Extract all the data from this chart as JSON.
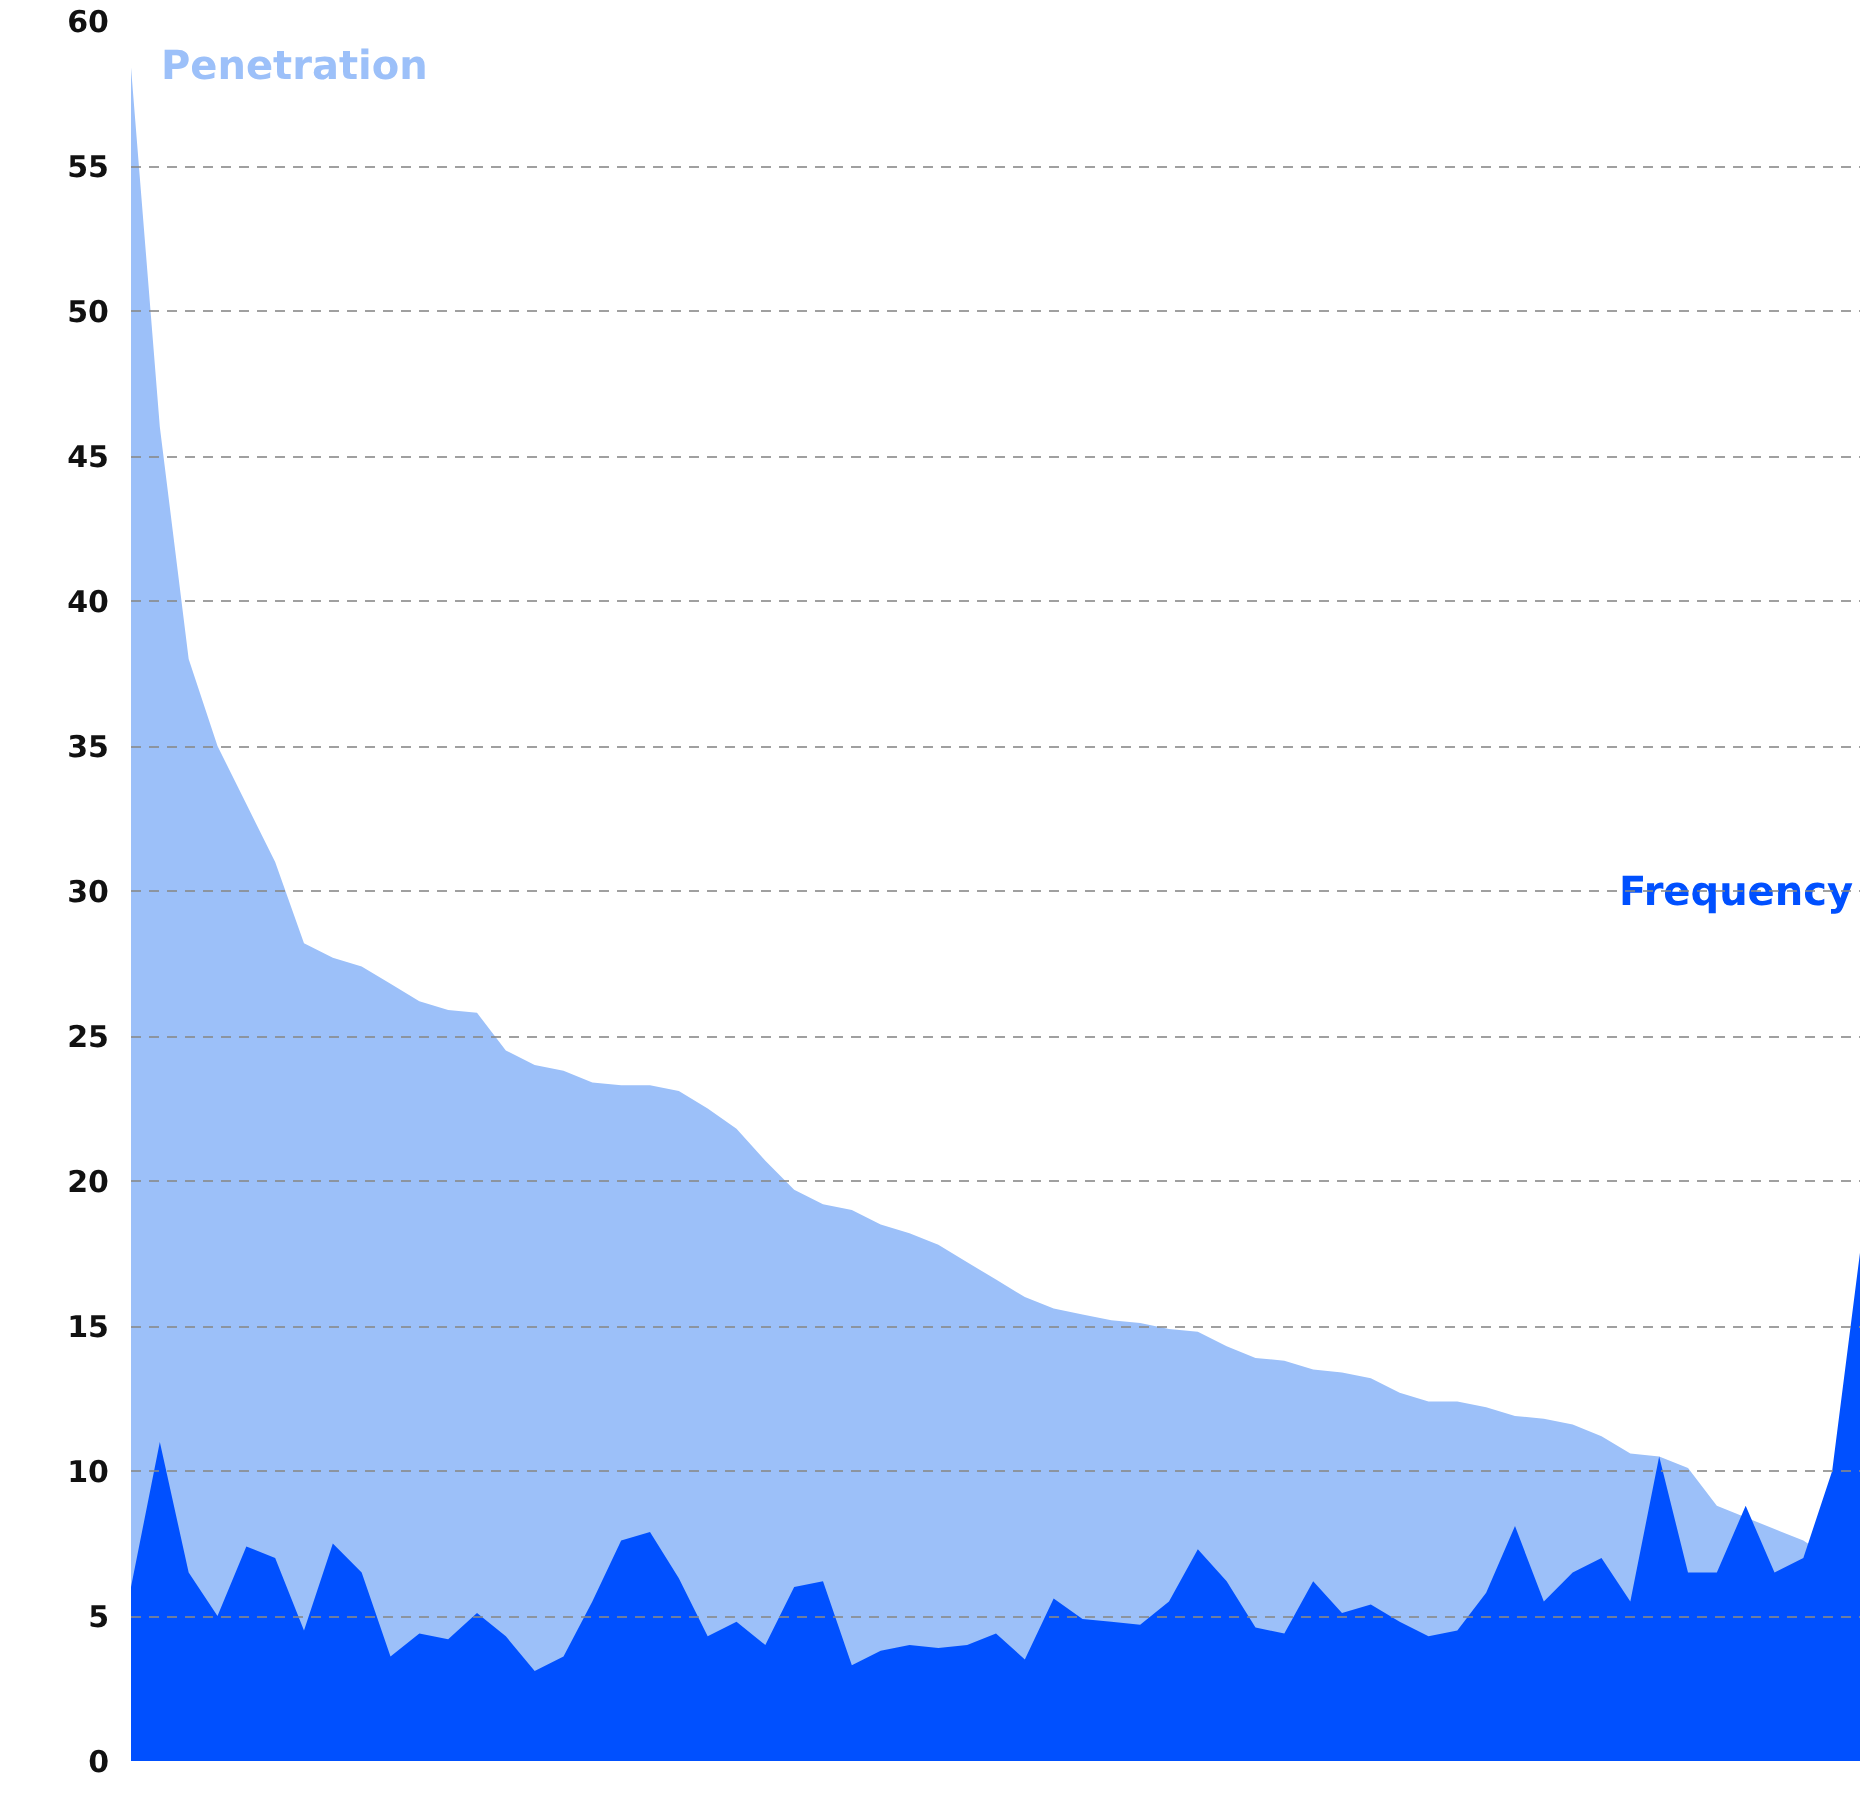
{
  "chart_data": {
    "type": "area",
    "categories": [
      null,
      null,
      null,
      null,
      null,
      null,
      null,
      null,
      null,
      null,
      null,
      null,
      null,
      null,
      null,
      null,
      null,
      null,
      null,
      null,
      null,
      null,
      null,
      null,
      null,
      null,
      null,
      null,
      null,
      null,
      null,
      null,
      null,
      null,
      null,
      null,
      null,
      null,
      null,
      null,
      null,
      null,
      null,
      null,
      null,
      null,
      null,
      null,
      null,
      null,
      null,
      null,
      null,
      null,
      null,
      null,
      null,
      null,
      null,
      null,
      null
    ],
    "series": [
      {
        "name": "Penetration",
        "color": "#9cc0f9",
        "values": [
          58.4,
          46,
          38,
          35,
          33,
          31,
          28.2,
          27.7,
          27.4,
          26.8,
          26.2,
          25.9,
          25.8,
          24.5,
          24,
          23.8,
          23.4,
          23.3,
          23.3,
          23.1,
          22.5,
          21.8,
          20.7,
          19.7,
          19.2,
          19,
          18.5,
          18.2,
          17.8,
          17.2,
          16.6,
          16,
          15.6,
          15.4,
          15.2,
          15.1,
          14.9,
          14.8,
          14.3,
          13.9,
          13.8,
          13.5,
          13.4,
          13.2,
          12.7,
          12.4,
          12.4,
          12.2,
          11.9,
          11.8,
          11.6,
          11.2,
          10.6,
          10.5,
          10.1,
          8.8,
          null,
          8,
          7.6,
          null,
          6.3
        ]
      },
      {
        "name": "Frequency",
        "color": "#0050ff",
        "values": [
          6,
          11,
          6.5,
          5,
          7.4,
          7,
          4.5,
          7.5,
          6.5,
          3.6,
          4.4,
          4.2,
          5.1,
          4.3,
          3.1,
          3.6,
          5.5,
          7.6,
          7.9,
          6.3,
          4.3,
          4.8,
          4,
          6,
          6.2,
          3.3,
          3.8,
          4,
          3.9,
          4,
          4.4,
          3.5,
          5.6,
          4.9,
          4.8,
          4.7,
          5.5,
          7.3,
          6.2,
          4.6,
          4.4,
          6.2,
          5.1,
          5.4,
          4.8,
          4.3,
          4.5,
          5.8,
          8.1,
          5.5,
          6.5,
          7,
          5.5,
          10.5,
          6.5,
          6.5,
          8.8,
          6.5,
          7,
          10,
          17.8
        ]
      }
    ],
    "ylim": [
      0,
      60
    ],
    "yticks": [
      0,
      5,
      10,
      15,
      20,
      25,
      30,
      35,
      40,
      45,
      50,
      55,
      60
    ],
    "grid": "y",
    "tick_labels": "y"
  }
}
